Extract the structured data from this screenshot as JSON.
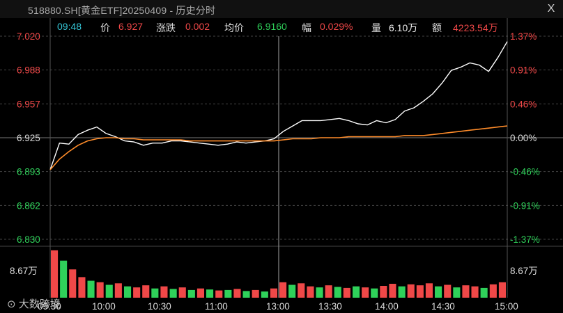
{
  "window": {
    "title": "518880.SH[黄金ETF]20250409 - 历史分时",
    "close_label": "X"
  },
  "info": {
    "time": "09:48",
    "price_label": "价",
    "price": "6.927",
    "change_label": "涨跌",
    "change": "0.002",
    "avg_label": "均价",
    "avg": "6.9160",
    "pct_label": "幅",
    "pct": "0.029%",
    "vol_label": "量",
    "vol": "6.10万",
    "amount_label": "额",
    "amount": "4223.54万"
  },
  "axes": {
    "price_ticks": [
      "7.020",
      "6.988",
      "6.957",
      "6.925",
      "6.893",
      "6.862",
      "6.830"
    ],
    "pct_ticks": [
      "1.37%",
      "0.91%",
      "0.46%",
      "0.00%",
      "-0.46%",
      "-0.91%",
      "-1.37%"
    ],
    "volume_label_left": "8.67万",
    "volume_label_right": "8.67万",
    "time_ticks": [
      "09:30",
      "10:00",
      "10:30",
      "11:00",
      "13:00",
      "13:30",
      "14:00",
      "14:30",
      "15:00"
    ]
  },
  "colors": {
    "up": "#f04848",
    "down": "#2fd15a",
    "price_line": "#ffffff",
    "avg_line": "#ff8c2a",
    "grid": "#444444"
  },
  "watermark": "大数跨境",
  "chart_data": {
    "type": "line",
    "x": [
      "09:30",
      "09:35",
      "09:40",
      "09:45",
      "09:50",
      "09:55",
      "10:00",
      "10:05",
      "10:10",
      "10:15",
      "10:20",
      "10:25",
      "10:30",
      "10:35",
      "10:40",
      "10:45",
      "10:50",
      "10:55",
      "11:00",
      "11:05",
      "11:10",
      "11:15",
      "11:20",
      "11:25",
      "11:30",
      "13:00",
      "13:05",
      "13:10",
      "13:15",
      "13:20",
      "13:25",
      "13:30",
      "13:35",
      "13:40",
      "13:45",
      "13:50",
      "13:55",
      "14:00",
      "14:05",
      "14:10",
      "14:15",
      "14:20",
      "14:25",
      "14:30",
      "14:35",
      "14:40",
      "14:45",
      "14:50",
      "14:55",
      "15:00"
    ],
    "series": [
      {
        "values": [
          6.895,
          6.92,
          6.919,
          6.928,
          6.932,
          6.935,
          6.929,
          6.926,
          6.922,
          6.921,
          6.918,
          6.92,
          6.92,
          6.922,
          6.922,
          6.921,
          6.92,
          6.919,
          6.918,
          6.919,
          6.921,
          6.92,
          6.921,
          6.922,
          6.924,
          6.931,
          6.936,
          6.941,
          6.941,
          6.941,
          6.942,
          6.943,
          6.941,
          6.938,
          6.937,
          6.941,
          6.939,
          6.942,
          6.95,
          6.953,
          6.959,
          6.966,
          6.976,
          6.988,
          6.991,
          6.995,
          6.993,
          6.987,
          7.0,
          7.015
        ]
      },
      {
        "values": [
          6.895,
          6.905,
          6.912,
          6.918,
          6.922,
          6.924,
          6.925,
          6.925,
          6.924,
          6.924,
          6.923,
          6.923,
          6.923,
          6.923,
          6.923,
          6.922,
          6.922,
          6.922,
          6.922,
          6.922,
          6.922,
          6.922,
          6.922,
          6.922,
          6.922,
          6.923,
          6.924,
          6.924,
          6.924,
          6.925,
          6.925,
          6.925,
          6.926,
          6.926,
          6.926,
          6.926,
          6.926,
          6.926,
          6.927,
          6.927,
          6.927,
          6.928,
          6.929,
          6.93,
          6.931,
          6.932,
          6.933,
          6.934,
          6.935,
          6.936
        ]
      }
    ],
    "ylim": [
      6.83,
      7.02
    ],
    "volume": {
      "max": "8.67万",
      "bars": [
        {
          "v": 0.92,
          "d": "up"
        },
        {
          "v": 0.72,
          "d": "down"
        },
        {
          "v": 0.55,
          "d": "up"
        },
        {
          "v": 0.4,
          "d": "up"
        },
        {
          "v": 0.33,
          "d": "down"
        },
        {
          "v": 0.3,
          "d": "up"
        },
        {
          "v": 0.25,
          "d": "down"
        },
        {
          "v": 0.28,
          "d": "up"
        },
        {
          "v": 0.22,
          "d": "down"
        },
        {
          "v": 0.2,
          "d": "up"
        },
        {
          "v": 0.24,
          "d": "up"
        },
        {
          "v": 0.18,
          "d": "down"
        },
        {
          "v": 0.22,
          "d": "up"
        },
        {
          "v": 0.17,
          "d": "down"
        },
        {
          "v": 0.2,
          "d": "up"
        },
        {
          "v": 0.15,
          "d": "down"
        },
        {
          "v": 0.18,
          "d": "up"
        },
        {
          "v": 0.16,
          "d": "down"
        },
        {
          "v": 0.14,
          "d": "up"
        },
        {
          "v": 0.15,
          "d": "down"
        },
        {
          "v": 0.17,
          "d": "up"
        },
        {
          "v": 0.13,
          "d": "down"
        },
        {
          "v": 0.15,
          "d": "up"
        },
        {
          "v": 0.12,
          "d": "down"
        },
        {
          "v": 0.18,
          "d": "up"
        },
        {
          "v": 0.3,
          "d": "up"
        },
        {
          "v": 0.25,
          "d": "down"
        },
        {
          "v": 0.28,
          "d": "up"
        },
        {
          "v": 0.22,
          "d": "up"
        },
        {
          "v": 0.2,
          "d": "down"
        },
        {
          "v": 0.24,
          "d": "up"
        },
        {
          "v": 0.21,
          "d": "down"
        },
        {
          "v": 0.19,
          "d": "up"
        },
        {
          "v": 0.22,
          "d": "down"
        },
        {
          "v": 0.2,
          "d": "up"
        },
        {
          "v": 0.18,
          "d": "down"
        },
        {
          "v": 0.23,
          "d": "up"
        },
        {
          "v": 0.27,
          "d": "up"
        },
        {
          "v": 0.22,
          "d": "down"
        },
        {
          "v": 0.26,
          "d": "up"
        },
        {
          "v": 0.24,
          "d": "up"
        },
        {
          "v": 0.28,
          "d": "up"
        },
        {
          "v": 0.22,
          "d": "down"
        },
        {
          "v": 0.25,
          "d": "up"
        },
        {
          "v": 0.2,
          "d": "down"
        },
        {
          "v": 0.24,
          "d": "up"
        },
        {
          "v": 0.22,
          "d": "up"
        },
        {
          "v": 0.19,
          "d": "down"
        },
        {
          "v": 0.26,
          "d": "up"
        },
        {
          "v": 0.3,
          "d": "up"
        }
      ]
    }
  }
}
